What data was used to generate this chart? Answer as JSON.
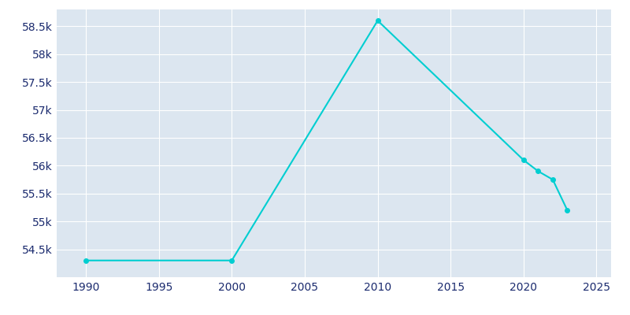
{
  "years": [
    1990,
    2000,
    2010,
    2020,
    2021,
    2022,
    2023
  ],
  "population": [
    54300,
    54300,
    58600,
    56100,
    55900,
    55750,
    55200
  ],
  "line_color": "#00CED1",
  "marker_color": "#00CED1",
  "plot_bg_color": "#dce6f0",
  "fig_bg_color": "#ffffff",
  "grid_color": "#ffffff",
  "xlim": [
    1988,
    2026
  ],
  "ylim": [
    54000,
    58800
  ],
  "yticks": [
    54500,
    55000,
    55500,
    56000,
    56500,
    57000,
    57500,
    58000,
    58500
  ],
  "ytick_labels": [
    "54.5k",
    "55k",
    "55.5k",
    "56k",
    "56.5k",
    "57k",
    "57.5k",
    "58k",
    "58.5k"
  ],
  "xticks": [
    1990,
    1995,
    2000,
    2005,
    2010,
    2015,
    2020,
    2025
  ],
  "tick_color": "#1a2a6e",
  "tick_fontsize": 10,
  "linewidth": 1.5,
  "markersize": 4
}
